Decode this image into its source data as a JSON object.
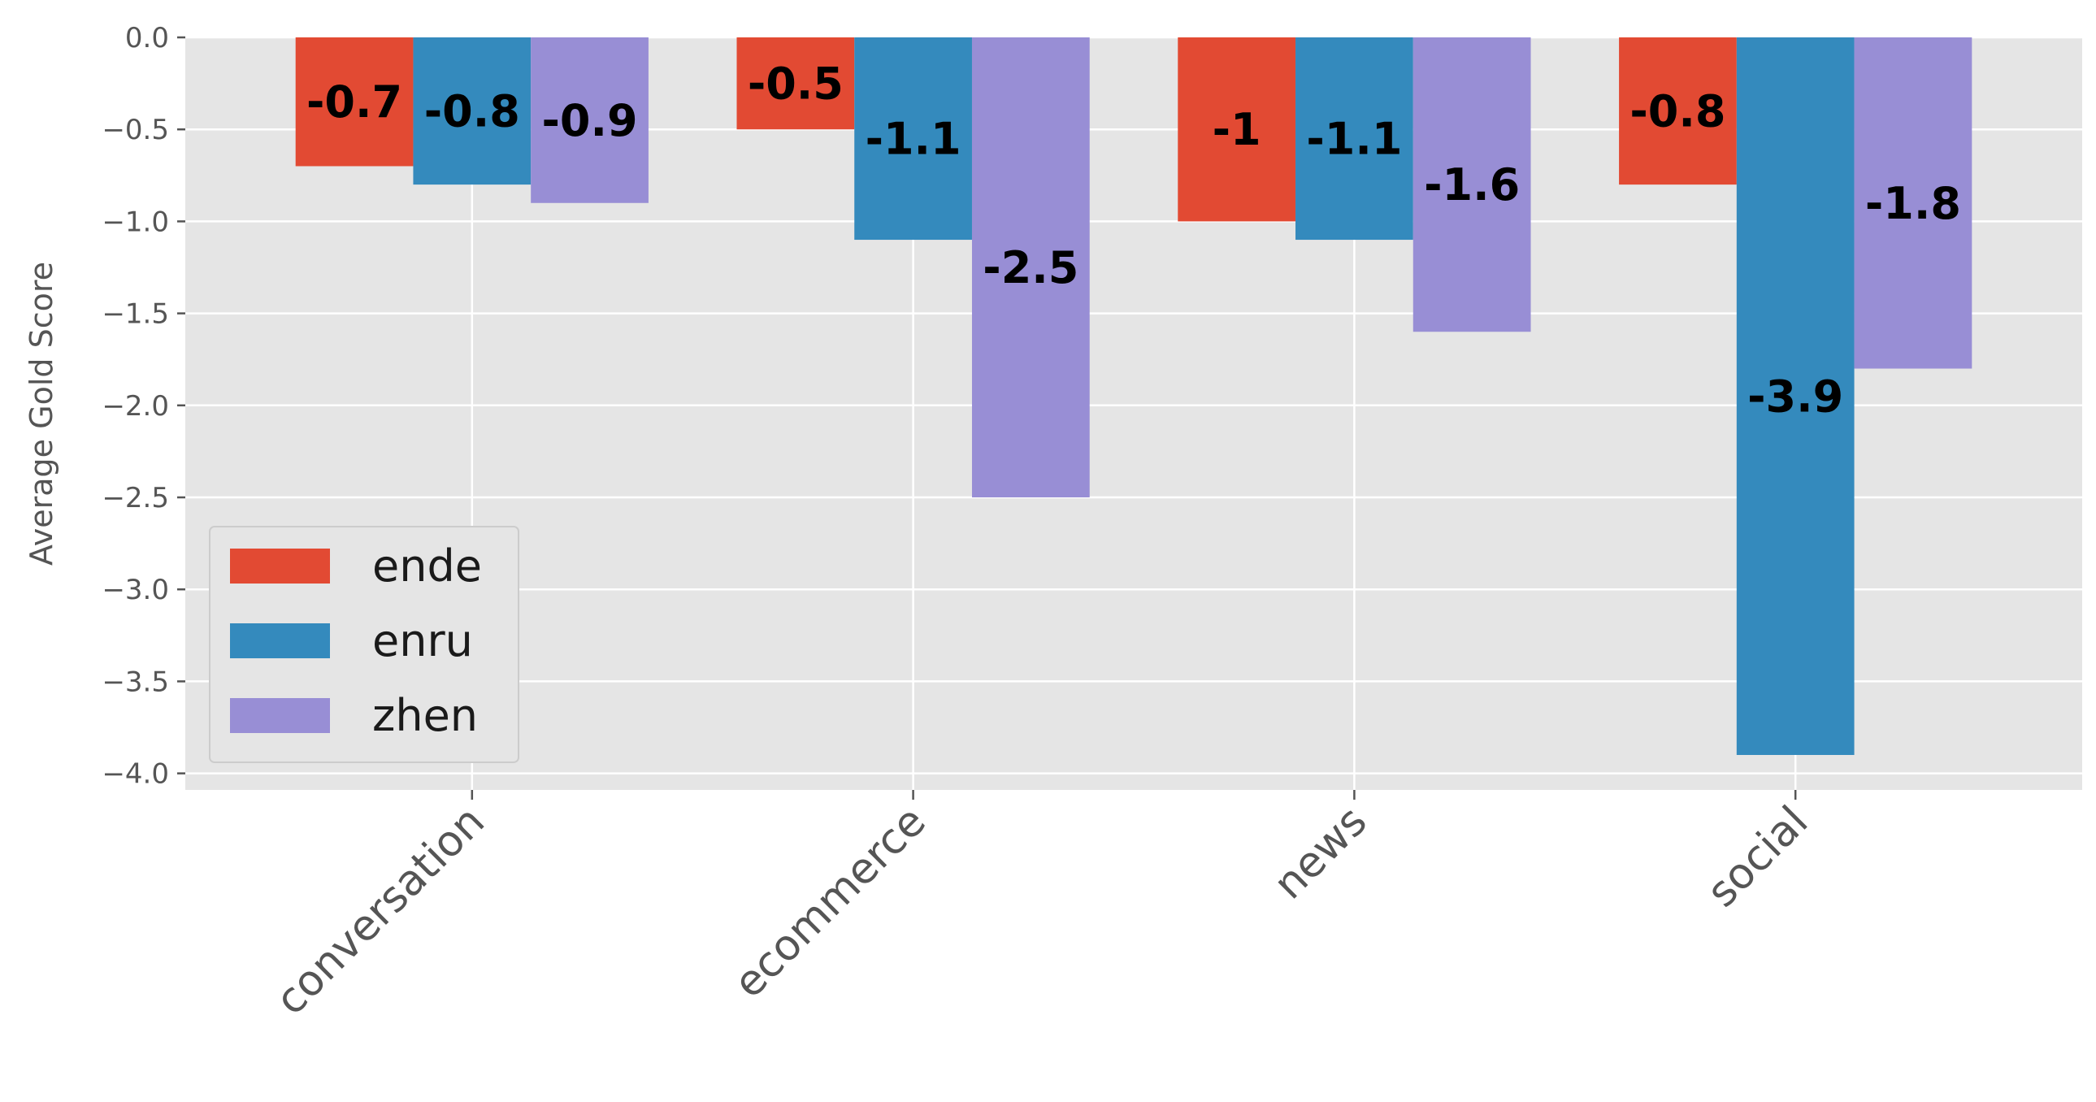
{
  "chart_data": {
    "type": "bar",
    "title": "",
    "xlabel": "",
    "ylabel": "Average Gold Score",
    "categories": [
      "conversation",
      "ecommerce",
      "news",
      "social"
    ],
    "series": [
      {
        "name": "ende",
        "color": "#E24A33",
        "values": [
          -0.7,
          -0.5,
          -1.0,
          -0.8
        ],
        "labels": [
          "-0.7",
          "-0.5",
          "-1",
          "-0.8"
        ]
      },
      {
        "name": "enru",
        "color": "#348ABD",
        "values": [
          -0.8,
          -1.1,
          -1.1,
          -3.9
        ],
        "labels": [
          "-0.8",
          "-1.1",
          "-1.1",
          "-3.9"
        ]
      },
      {
        "name": "zhen",
        "color": "#988ED5",
        "values": [
          -0.9,
          -2.5,
          -1.6,
          -1.8
        ],
        "labels": [
          "-0.9",
          "-2.5",
          "-1.6",
          "-1.8"
        ]
      }
    ],
    "ylim": [
      -4.09,
      0.0
    ],
    "yticks": [
      {
        "value": 0.0,
        "label": "0.0"
      },
      {
        "value": -0.5,
        "label": "−0.5"
      },
      {
        "value": -1.0,
        "label": "−1.0"
      },
      {
        "value": -1.5,
        "label": "−1.5"
      },
      {
        "value": -2.0,
        "label": "−2.0"
      },
      {
        "value": -2.5,
        "label": "−2.5"
      },
      {
        "value": -3.0,
        "label": "−3.0"
      },
      {
        "value": -3.5,
        "label": "−3.5"
      },
      {
        "value": -4.0,
        "label": "−4.0"
      }
    ],
    "grid": true,
    "legend_position": "lower-left",
    "background": "#E5E5E5",
    "grid_color": "#FFFFFF"
  }
}
